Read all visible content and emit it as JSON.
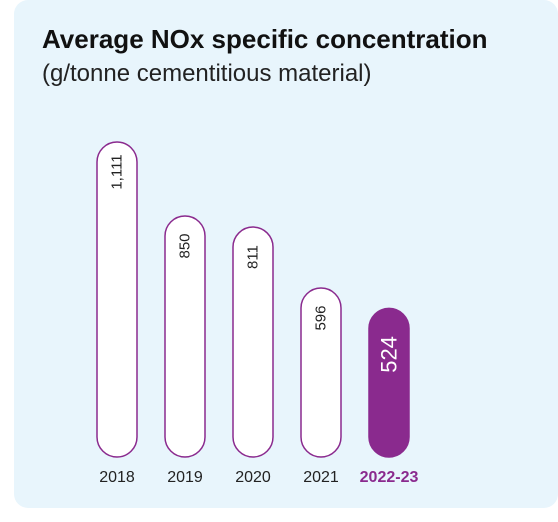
{
  "header": {
    "title": "Average NOx specific concentration",
    "subtitle": "(g/tonne cementitious material)"
  },
  "colors": {
    "background": "#e8f5fc",
    "bar_outline": "#8a2a8e",
    "bar_fill": "#ffffff",
    "highlight_fill": "#8a2a8e",
    "text": "#222222"
  },
  "chart_data": {
    "type": "bar",
    "title": "Average NOx specific concentration",
    "subtitle": "(g/tonne cementitious material)",
    "categories": [
      "2018",
      "2019",
      "2020",
      "2021",
      "2022-23"
    ],
    "values": [
      1111,
      850,
      811,
      596,
      524
    ],
    "value_labels": [
      "1,111",
      "850",
      "811",
      "596",
      "524"
    ],
    "highlight_index": 4,
    "xlabel": "",
    "ylabel": "",
    "grid": false,
    "legend": "none"
  }
}
